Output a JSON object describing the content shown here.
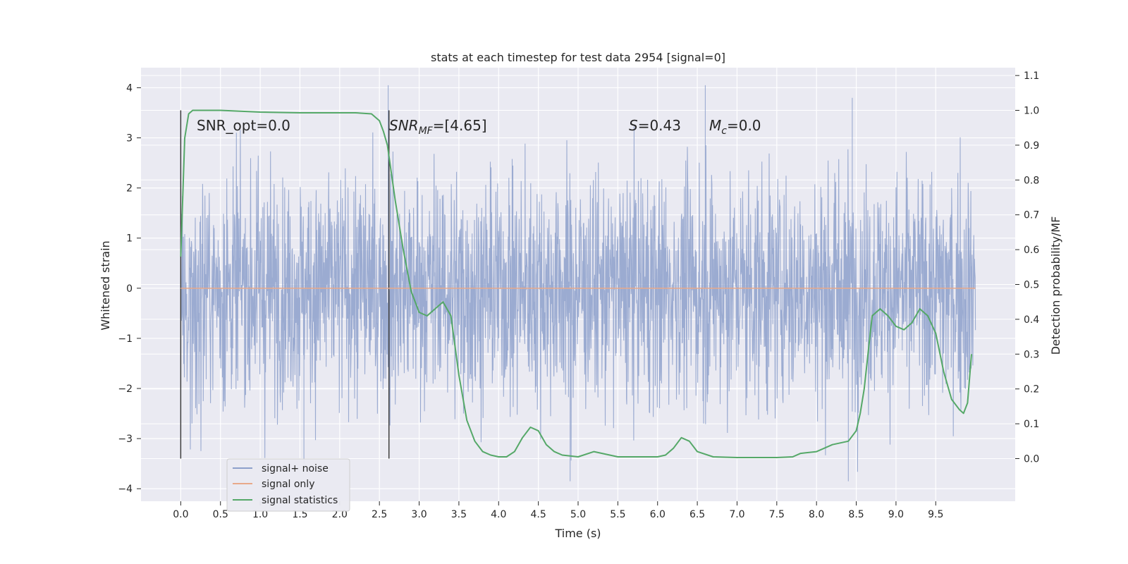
{
  "chart_data": {
    "type": "line",
    "title": "stats at each timestep for test data 2954 [signal=0]",
    "xlabel": "Time (s)",
    "ylabel": "Whitened strain",
    "y2label": "Detection probability/MF",
    "xlim": [
      -0.5,
      10.5
    ],
    "ylim": [
      -4.25,
      4.4
    ],
    "y2lim": [
      -0.1225,
      1.1225
    ],
    "x_ticks": [
      "0.0",
      "0.5",
      "1.0",
      "1.5",
      "2.0",
      "2.5",
      "3.0",
      "3.5",
      "4.0",
      "4.5",
      "5.0",
      "5.5",
      "6.0",
      "6.5",
      "7.0",
      "7.5",
      "8.0",
      "8.5",
      "9.0",
      "9.5"
    ],
    "y_ticks": [
      "4",
      "3",
      "2",
      "1",
      "0",
      "−1",
      "−2",
      "−3",
      "−4"
    ],
    "y2_ticks": [
      "1.1",
      "1.0",
      "0.9",
      "0.8",
      "0.7",
      "0.6",
      "0.5",
      "0.4",
      "0.3",
      "0.2",
      "0.1",
      "0.0"
    ],
    "grid": true,
    "legend_position": "lower-left",
    "annotations": [
      {
        "id": "snr-opt",
        "text": "SNR_opt=0.0"
      },
      {
        "id": "snr-mf",
        "base": "SNR",
        "sub": "MF",
        "rest": "=[4.65]"
      },
      {
        "id": "s",
        "base": "S",
        "rest": "=0.43"
      },
      {
        "id": "mc",
        "base": "M",
        "sub": "c",
        "rest": "=0.0"
      }
    ],
    "vertical_markers": [
      0.0,
      2.62
    ],
    "series": [
      {
        "name": "signal+ noise",
        "axis": "left",
        "color": "#8da0cb",
        "noise_amplitude": 1.15,
        "x_range": [
          0,
          10
        ],
        "peaks": [
          [
            2.61,
            4.05
          ],
          [
            6.6,
            4.05
          ],
          [
            8.45,
            3.8
          ],
          [
            4.9,
            -3.85
          ],
          [
            8.4,
            -3.85
          ],
          [
            1.55,
            -3.5
          ]
        ]
      },
      {
        "name": "signal only",
        "axis": "left",
        "color": "#e8a98a",
        "x": [
          0,
          10
        ],
        "y": [
          0,
          0
        ]
      },
      {
        "name": "signal statistics",
        "axis": "right",
        "color": "#55a868",
        "x": [
          0.0,
          0.05,
          0.1,
          0.15,
          0.2,
          0.3,
          0.5,
          1.0,
          1.5,
          2.0,
          2.2,
          2.4,
          2.5,
          2.55,
          2.6,
          2.7,
          2.8,
          2.9,
          3.0,
          3.1,
          3.2,
          3.3,
          3.4,
          3.5,
          3.6,
          3.7,
          3.8,
          3.9,
          4.0,
          4.1,
          4.2,
          4.3,
          4.4,
          4.5,
          4.6,
          4.7,
          4.8,
          5.0,
          5.2,
          5.5,
          5.8,
          6.0,
          6.1,
          6.2,
          6.3,
          6.4,
          6.5,
          6.7,
          7.0,
          7.5,
          7.7,
          7.8,
          8.0,
          8.2,
          8.4,
          8.5,
          8.55,
          8.6,
          8.7,
          8.8,
          8.9,
          9.0,
          9.1,
          9.2,
          9.3,
          9.4,
          9.5,
          9.6,
          9.7,
          9.8,
          9.85,
          9.9,
          9.95
        ],
        "y": [
          0.58,
          0.92,
          0.99,
          1.0,
          1.0,
          1.0,
          1.0,
          0.995,
          0.993,
          0.993,
          0.993,
          0.99,
          0.97,
          0.94,
          0.9,
          0.74,
          0.6,
          0.48,
          0.42,
          0.41,
          0.43,
          0.45,
          0.41,
          0.24,
          0.11,
          0.05,
          0.02,
          0.01,
          0.005,
          0.005,
          0.02,
          0.06,
          0.09,
          0.08,
          0.04,
          0.02,
          0.01,
          0.005,
          0.02,
          0.005,
          0.005,
          0.005,
          0.01,
          0.03,
          0.06,
          0.05,
          0.02,
          0.005,
          0.003,
          0.003,
          0.005,
          0.015,
          0.02,
          0.04,
          0.05,
          0.08,
          0.13,
          0.2,
          0.41,
          0.43,
          0.41,
          0.38,
          0.37,
          0.39,
          0.43,
          0.41,
          0.36,
          0.25,
          0.17,
          0.14,
          0.13,
          0.16,
          0.3
        ]
      }
    ]
  }
}
